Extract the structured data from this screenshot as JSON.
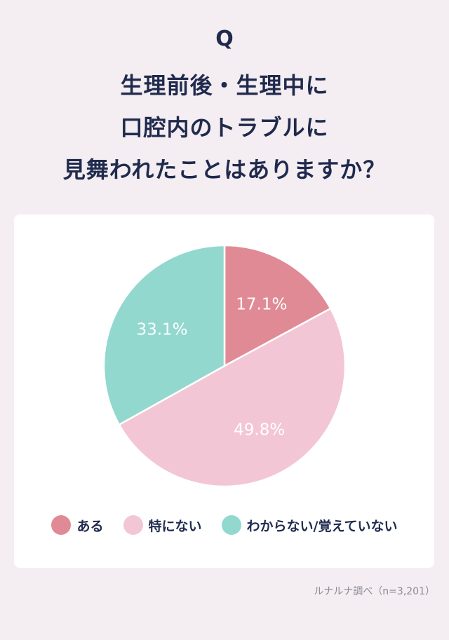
{
  "header": {
    "q_mark": "Q",
    "title_lines": [
      "生理前後・生理中に",
      "口腔内のトラブルに",
      "見舞われたことはありますか？"
    ]
  },
  "chart_data": {
    "type": "pie",
    "categories": [
      "ある",
      "特にない",
      "わからない/覚えていない"
    ],
    "values": [
      17.1,
      49.8,
      33.1
    ],
    "data_labels": [
      "17.1%",
      "49.8%",
      "33.1%"
    ],
    "colors": [
      "#e08a95",
      "#f3c6d5",
      "#92d8cf"
    ],
    "legend_placement": "bottom"
  },
  "footer": {
    "source": "ルナルナ調べ（n=3,201）"
  }
}
